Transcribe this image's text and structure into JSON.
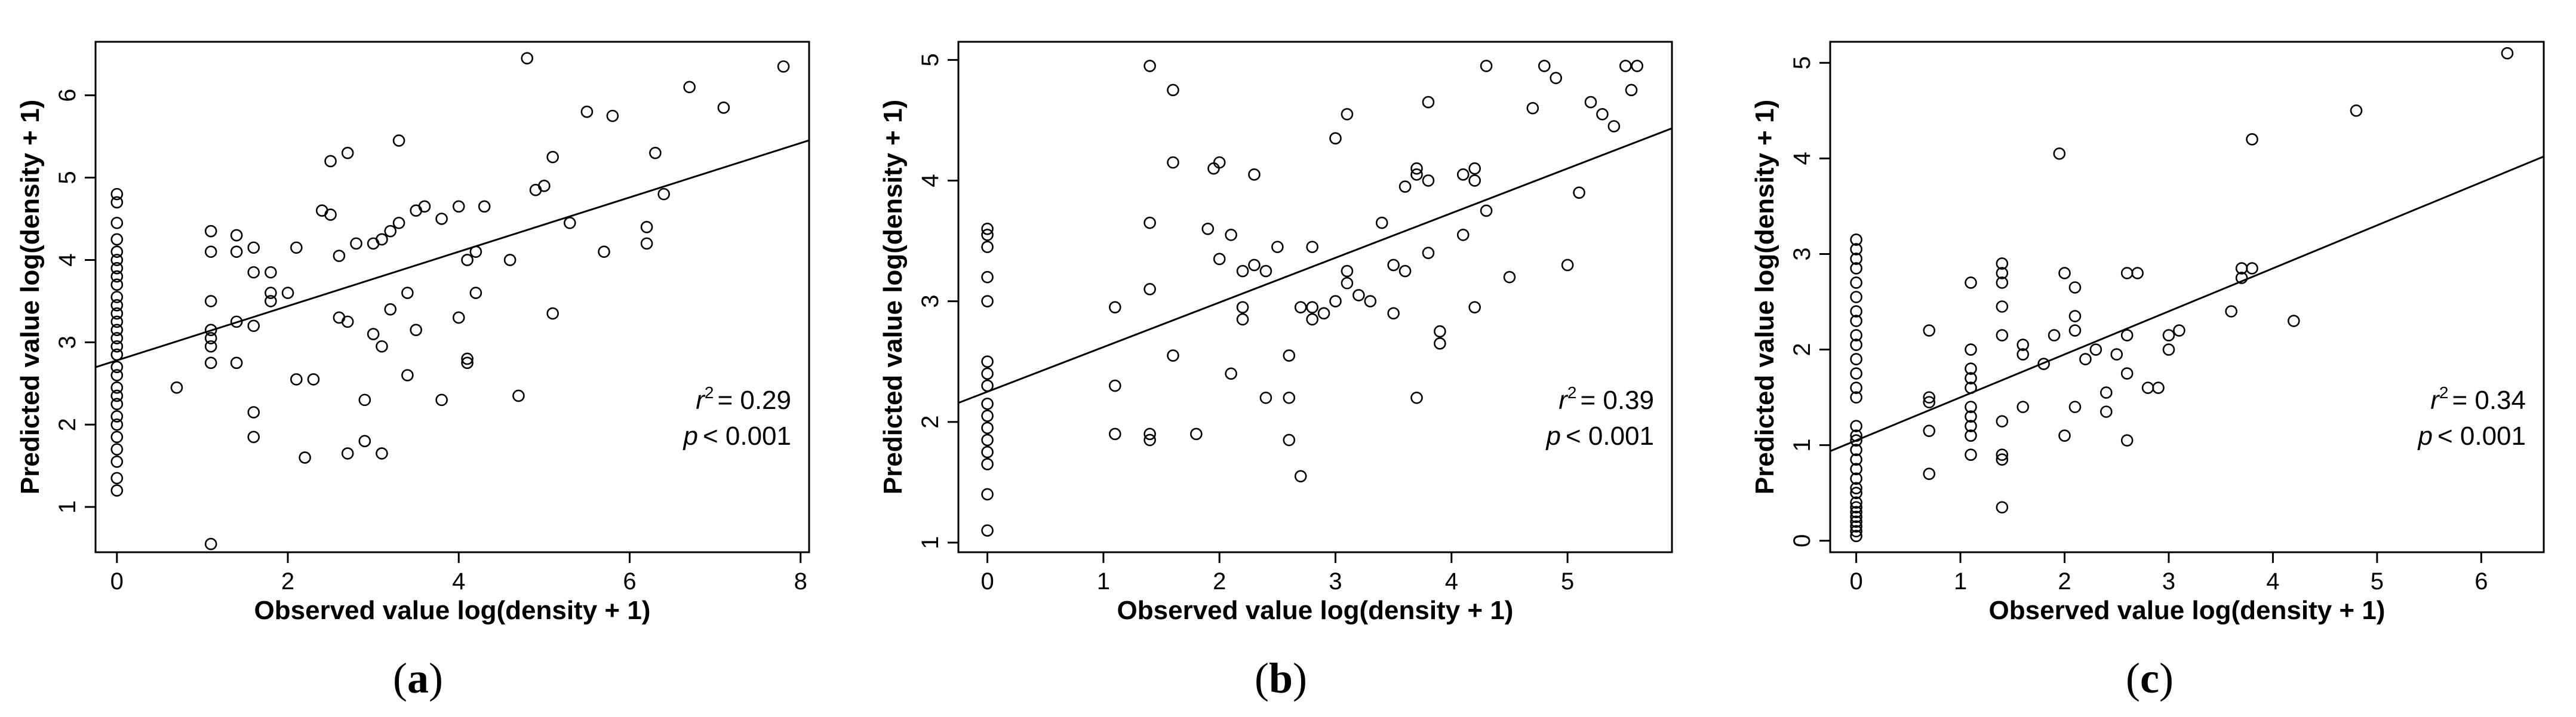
{
  "chart_data": [
    {
      "type": "scatter",
      "panel_label": "a",
      "xlabel": "Observed value  log(density + 1)",
      "ylabel": "Predicted value  log(density + 1)",
      "xlim": [
        -0.25,
        8.1
      ],
      "ylim": [
        0.45,
        6.65
      ],
      "xticks": [
        0,
        2,
        4,
        6,
        8
      ],
      "yticks": [
        1,
        2,
        3,
        4,
        5,
        6
      ],
      "r2_value": "= 0.29",
      "p_value": "< 0.001",
      "fit_line": {
        "intercept": 2.78,
        "slope": 0.33
      },
      "points": [
        [
          0,
          1.2
        ],
        [
          0,
          1.35
        ],
        [
          0,
          1.55
        ],
        [
          0,
          1.7
        ],
        [
          0,
          1.85
        ],
        [
          0,
          2.0
        ],
        [
          0,
          2.1
        ],
        [
          0,
          2.25
        ],
        [
          0,
          2.35
        ],
        [
          0,
          2.45
        ],
        [
          0,
          2.6
        ],
        [
          0,
          2.7
        ],
        [
          0,
          2.85
        ],
        [
          0,
          2.95
        ],
        [
          0,
          3.05
        ],
        [
          0,
          3.15
        ],
        [
          0,
          3.25
        ],
        [
          0,
          3.35
        ],
        [
          0,
          3.45
        ],
        [
          0,
          3.55
        ],
        [
          0,
          3.7
        ],
        [
          0,
          3.8
        ],
        [
          0,
          3.9
        ],
        [
          0,
          4.0
        ],
        [
          0,
          4.1
        ],
        [
          0,
          4.25
        ],
        [
          0,
          4.45
        ],
        [
          0,
          4.7
        ],
        [
          0,
          4.8
        ],
        [
          0.7,
          2.45
        ],
        [
          1.1,
          0.55
        ],
        [
          1.1,
          2.75
        ],
        [
          1.1,
          2.95
        ],
        [
          1.1,
          3.05
        ],
        [
          1.1,
          3.15
        ],
        [
          1.1,
          3.5
        ],
        [
          1.1,
          4.1
        ],
        [
          1.1,
          4.35
        ],
        [
          1.4,
          2.75
        ],
        [
          1.4,
          3.25
        ],
        [
          1.4,
          4.1
        ],
        [
          1.4,
          4.3
        ],
        [
          1.6,
          1.85
        ],
        [
          1.6,
          2.15
        ],
        [
          1.6,
          3.2
        ],
        [
          1.6,
          3.85
        ],
        [
          1.6,
          4.15
        ],
        [
          1.8,
          3.5
        ],
        [
          1.8,
          3.6
        ],
        [
          1.8,
          3.85
        ],
        [
          2.0,
          3.6
        ],
        [
          2.1,
          2.55
        ],
        [
          2.1,
          4.15
        ],
        [
          2.2,
          1.6
        ],
        [
          2.3,
          2.55
        ],
        [
          2.4,
          4.6
        ],
        [
          2.5,
          4.55
        ],
        [
          2.5,
          5.2
        ],
        [
          2.6,
          3.3
        ],
        [
          2.6,
          4.05
        ],
        [
          2.7,
          1.65
        ],
        [
          2.7,
          3.25
        ],
        [
          2.7,
          5.3
        ],
        [
          2.8,
          4.2
        ],
        [
          2.9,
          1.8
        ],
        [
          2.9,
          2.3
        ],
        [
          3.0,
          3.1
        ],
        [
          3.0,
          4.2
        ],
        [
          3.1,
          1.65
        ],
        [
          3.1,
          2.95
        ],
        [
          3.1,
          4.25
        ],
        [
          3.2,
          3.4
        ],
        [
          3.2,
          4.35
        ],
        [
          3.3,
          4.45
        ],
        [
          3.3,
          5.45
        ],
        [
          3.4,
          2.6
        ],
        [
          3.4,
          3.6
        ],
        [
          3.5,
          3.15
        ],
        [
          3.5,
          4.6
        ],
        [
          3.6,
          4.65
        ],
        [
          3.8,
          2.3
        ],
        [
          3.8,
          4.5
        ],
        [
          4.0,
          3.3
        ],
        [
          4.0,
          4.65
        ],
        [
          4.1,
          2.75
        ],
        [
          4.1,
          2.8
        ],
        [
          4.1,
          4.0
        ],
        [
          4.2,
          3.6
        ],
        [
          4.2,
          4.1
        ],
        [
          4.3,
          4.65
        ],
        [
          4.6,
          4.0
        ],
        [
          4.7,
          2.35
        ],
        [
          4.8,
          6.45
        ],
        [
          4.9,
          4.85
        ],
        [
          5.0,
          4.9
        ],
        [
          5.1,
          3.35
        ],
        [
          5.1,
          5.25
        ],
        [
          5.3,
          4.45
        ],
        [
          5.5,
          5.8
        ],
        [
          5.7,
          4.1
        ],
        [
          5.8,
          5.75
        ],
        [
          6.2,
          4.2
        ],
        [
          6.2,
          4.4
        ],
        [
          6.3,
          5.3
        ],
        [
          6.4,
          4.8
        ],
        [
          6.7,
          6.1
        ],
        [
          7.1,
          5.85
        ],
        [
          7.8,
          6.35
        ]
      ]
    },
    {
      "type": "scatter",
      "panel_label": "b",
      "xlabel": "Observed value  log(density + 1)",
      "ylabel": "Predicted value  log(density + 1)",
      "xlim": [
        -0.25,
        5.9
      ],
      "ylim": [
        0.92,
        5.15
      ],
      "xticks": [
        0,
        1,
        2,
        3,
        4,
        5
      ],
      "yticks": [
        1,
        2,
        3,
        4,
        5
      ],
      "r2_value": "= 0.39",
      "p_value": "< 0.001",
      "fit_line": {
        "intercept": 2.25,
        "slope": 0.37
      },
      "points": [
        [
          0,
          1.1
        ],
        [
          0,
          1.4
        ],
        [
          0,
          1.65
        ],
        [
          0,
          1.75
        ],
        [
          0,
          1.85
        ],
        [
          0,
          1.95
        ],
        [
          0,
          2.05
        ],
        [
          0,
          2.15
        ],
        [
          0,
          2.3
        ],
        [
          0,
          2.4
        ],
        [
          0,
          2.5
        ],
        [
          0,
          3.0
        ],
        [
          0,
          3.2
        ],
        [
          0,
          3.45
        ],
        [
          0,
          3.55
        ],
        [
          0,
          3.6
        ],
        [
          1.1,
          1.9
        ],
        [
          1.1,
          2.3
        ],
        [
          1.1,
          2.95
        ],
        [
          1.4,
          1.85
        ],
        [
          1.4,
          1.9
        ],
        [
          1.4,
          3.1
        ],
        [
          1.4,
          3.65
        ],
        [
          1.4,
          4.95
        ],
        [
          1.6,
          2.55
        ],
        [
          1.6,
          4.15
        ],
        [
          1.6,
          4.75
        ],
        [
          1.8,
          1.9
        ],
        [
          1.9,
          3.6
        ],
        [
          1.95,
          4.1
        ],
        [
          2.0,
          3.35
        ],
        [
          2.0,
          4.15
        ],
        [
          2.1,
          3.55
        ],
        [
          2.1,
          2.4
        ],
        [
          2.2,
          2.85
        ],
        [
          2.2,
          2.95
        ],
        [
          2.2,
          3.25
        ],
        [
          2.3,
          3.3
        ],
        [
          2.3,
          4.05
        ],
        [
          2.4,
          3.25
        ],
        [
          2.4,
          2.2
        ],
        [
          2.5,
          3.45
        ],
        [
          2.6,
          2.55
        ],
        [
          2.6,
          1.85
        ],
        [
          2.6,
          2.2
        ],
        [
          2.7,
          2.95
        ],
        [
          2.7,
          1.55
        ],
        [
          2.8,
          2.95
        ],
        [
          2.8,
          2.85
        ],
        [
          2.8,
          3.45
        ],
        [
          2.9,
          2.9
        ],
        [
          3.0,
          4.35
        ],
        [
          3.0,
          3.0
        ],
        [
          3.1,
          3.15
        ],
        [
          3.1,
          3.25
        ],
        [
          3.1,
          4.55
        ],
        [
          3.2,
          3.05
        ],
        [
          3.3,
          3.0
        ],
        [
          3.4,
          3.65
        ],
        [
          3.5,
          2.9
        ],
        [
          3.5,
          3.3
        ],
        [
          3.6,
          3.25
        ],
        [
          3.6,
          3.95
        ],
        [
          3.7,
          2.2
        ],
        [
          3.7,
          4.05
        ],
        [
          3.7,
          4.1
        ],
        [
          3.8,
          4.0
        ],
        [
          3.8,
          3.4
        ],
        [
          3.8,
          4.65
        ],
        [
          3.9,
          2.75
        ],
        [
          3.9,
          2.65
        ],
        [
          4.1,
          4.05
        ],
        [
          4.1,
          3.55
        ],
        [
          4.2,
          2.95
        ],
        [
          4.2,
          4.0
        ],
        [
          4.2,
          4.1
        ],
        [
          4.3,
          3.75
        ],
        [
          4.3,
          4.95
        ],
        [
          4.5,
          3.2
        ],
        [
          4.7,
          4.6
        ],
        [
          4.8,
          4.95
        ],
        [
          4.9,
          4.85
        ],
        [
          5.0,
          3.3
        ],
        [
          5.1,
          3.9
        ],
        [
          5.2,
          4.65
        ],
        [
          5.3,
          4.55
        ],
        [
          5.4,
          4.45
        ],
        [
          5.5,
          4.95
        ],
        [
          5.55,
          4.75
        ],
        [
          5.6,
          4.95
        ]
      ]
    },
    {
      "type": "scatter",
      "panel_label": "c",
      "xlabel": "Observed value  log(density + 1)",
      "ylabel": "Predicted value  log(density + 1)",
      "xlim": [
        -0.25,
        6.6
      ],
      "ylim": [
        -0.12,
        5.22
      ],
      "xticks": [
        0,
        1,
        2,
        3,
        4,
        5,
        6
      ],
      "yticks": [
        0,
        1,
        2,
        3,
        4,
        5
      ],
      "r2_value": "= 0.34",
      "p_value": "< 0.001",
      "fit_line": {
        "intercept": 1.05,
        "slope": 0.45
      },
      "points": [
        [
          0,
          0.05
        ],
        [
          0,
          0.1
        ],
        [
          0,
          0.15
        ],
        [
          0,
          0.2
        ],
        [
          0,
          0.25
        ],
        [
          0,
          0.3
        ],
        [
          0,
          0.35
        ],
        [
          0,
          0.4
        ],
        [
          0,
          0.5
        ],
        [
          0,
          0.55
        ],
        [
          0,
          0.65
        ],
        [
          0,
          0.75
        ],
        [
          0,
          0.85
        ],
        [
          0,
          0.95
        ],
        [
          0,
          1.05
        ],
        [
          0,
          1.1
        ],
        [
          0,
          1.2
        ],
        [
          0,
          1.5
        ],
        [
          0,
          1.6
        ],
        [
          0,
          1.75
        ],
        [
          0,
          1.9
        ],
        [
          0,
          2.05
        ],
        [
          0,
          2.15
        ],
        [
          0,
          2.3
        ],
        [
          0,
          2.4
        ],
        [
          0,
          2.55
        ],
        [
          0,
          2.7
        ],
        [
          0,
          2.85
        ],
        [
          0,
          2.95
        ],
        [
          0,
          3.05
        ],
        [
          0,
          3.15
        ],
        [
          0.7,
          0.7
        ],
        [
          0.7,
          1.15
        ],
        [
          0.7,
          1.45
        ],
        [
          0.7,
          1.5
        ],
        [
          0.7,
          2.2
        ],
        [
          1.1,
          0.9
        ],
        [
          1.1,
          1.1
        ],
        [
          1.1,
          1.2
        ],
        [
          1.1,
          1.3
        ],
        [
          1.1,
          1.4
        ],
        [
          1.1,
          1.6
        ],
        [
          1.1,
          1.7
        ],
        [
          1.1,
          1.8
        ],
        [
          1.1,
          2.0
        ],
        [
          1.1,
          2.7
        ],
        [
          1.4,
          0.35
        ],
        [
          1.4,
          0.85
        ],
        [
          1.4,
          0.9
        ],
        [
          1.4,
          1.25
        ],
        [
          1.4,
          2.15
        ],
        [
          1.4,
          2.45
        ],
        [
          1.4,
          2.7
        ],
        [
          1.4,
          2.8
        ],
        [
          1.4,
          2.9
        ],
        [
          1.6,
          1.4
        ],
        [
          1.6,
          1.95
        ],
        [
          1.6,
          2.05
        ],
        [
          1.8,
          1.85
        ],
        [
          1.9,
          2.15
        ],
        [
          1.95,
          4.05
        ],
        [
          2.0,
          1.1
        ],
        [
          2.0,
          2.8
        ],
        [
          2.1,
          1.4
        ],
        [
          2.1,
          2.2
        ],
        [
          2.1,
          2.35
        ],
        [
          2.1,
          2.65
        ],
        [
          2.2,
          1.9
        ],
        [
          2.3,
          2.0
        ],
        [
          2.4,
          1.35
        ],
        [
          2.4,
          1.55
        ],
        [
          2.5,
          1.95
        ],
        [
          2.6,
          1.05
        ],
        [
          2.6,
          1.75
        ],
        [
          2.6,
          2.15
        ],
        [
          2.6,
          2.8
        ],
        [
          2.7,
          2.8
        ],
        [
          2.8,
          1.6
        ],
        [
          2.9,
          1.6
        ],
        [
          3.0,
          2.15
        ],
        [
          3.0,
          2.0
        ],
        [
          3.1,
          2.2
        ],
        [
          3.6,
          2.4
        ],
        [
          3.7,
          2.75
        ],
        [
          3.7,
          2.85
        ],
        [
          3.8,
          2.85
        ],
        [
          3.8,
          4.2
        ],
        [
          4.2,
          2.3
        ],
        [
          4.8,
          4.5
        ],
        [
          6.25,
          5.1
        ]
      ]
    }
  ]
}
